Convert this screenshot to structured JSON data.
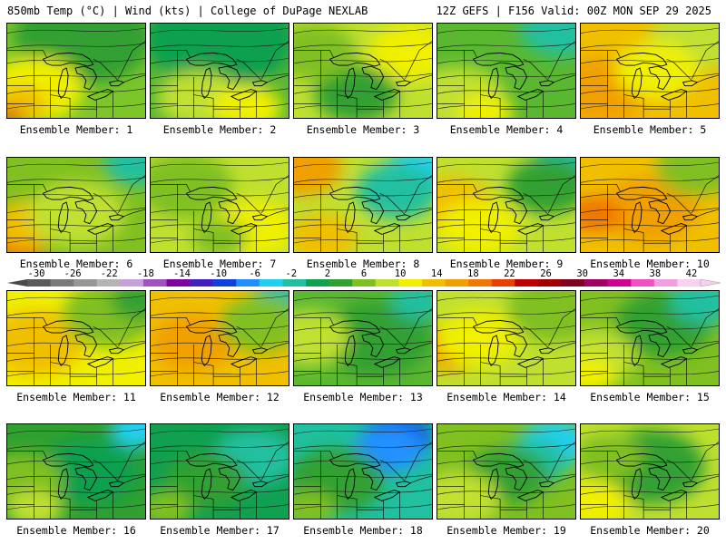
{
  "header": {
    "left": "850mb Temp (°C) | Wind (kts) | College of DuPage NEXLAB",
    "right": "12Z GEFS | F156 Valid: 00Z MON SEP 29 2025"
  },
  "colorbar": {
    "ticks": [
      "-30",
      "-26",
      "-22",
      "-18",
      "-14",
      "-10",
      "-6",
      "-2",
      "2",
      "6",
      "10",
      "14",
      "18",
      "22",
      "26",
      "30",
      "34",
      "38",
      "42"
    ],
    "colors": [
      "#5a5a5a",
      "#7a7a7a",
      "#969696",
      "#b4b4b4",
      "#c8a0d8",
      "#a050c0",
      "#8000a0",
      "#4020c0",
      "#1040e0",
      "#2090ff",
      "#20d0f0",
      "#20c0a0",
      "#10a050",
      "#30a030",
      "#80c020",
      "#c0e030",
      "#f0f000",
      "#f0c000",
      "#f0a000",
      "#f07800",
      "#e84000",
      "#c00000",
      "#a00000",
      "#800020",
      "#a00060",
      "#d00090",
      "#f050c0",
      "#f0a0e0",
      "#f8d0f0"
    ]
  },
  "panels": [
    {
      "label": "Ensemble Member: 1",
      "base": "#7cc62a",
      "blobs": [
        [
          "#30a030",
          0.55,
          0.15,
          0.5
        ],
        [
          "#f0f000",
          0.2,
          0.7,
          0.35
        ],
        [
          "#f0c000",
          0.1,
          0.85,
          0.2
        ],
        [
          "#e84000",
          0.02,
          0.97,
          0.08
        ]
      ]
    },
    {
      "label": "Ensemble Member: 2",
      "base": "#5ab830",
      "blobs": [
        [
          "#10a050",
          0.5,
          0.15,
          0.55
        ],
        [
          "#c0e030",
          0.35,
          0.8,
          0.3
        ],
        [
          "#f0f000",
          0.7,
          0.9,
          0.25
        ]
      ]
    },
    {
      "label": "Ensemble Member: 3",
      "base": "#c0e030",
      "blobs": [
        [
          "#30a030",
          0.45,
          0.75,
          0.3
        ],
        [
          "#f0f000",
          0.85,
          0.3,
          0.3
        ],
        [
          "#80c020",
          0.15,
          0.3,
          0.3
        ]
      ]
    },
    {
      "label": "Ensemble Member: 4",
      "base": "#5ab830",
      "blobs": [
        [
          "#20c0a0",
          0.9,
          0.05,
          0.3
        ],
        [
          "#c0e030",
          0.15,
          0.8,
          0.35
        ],
        [
          "#f0f000",
          0.35,
          0.95,
          0.2
        ]
      ]
    },
    {
      "label": "Ensemble Member: 5",
      "base": "#f0c000",
      "blobs": [
        [
          "#f0a000",
          0.15,
          0.7,
          0.35
        ],
        [
          "#c0e030",
          0.85,
          0.15,
          0.35
        ],
        [
          "#f0f000",
          0.55,
          0.5,
          0.3
        ]
      ]
    },
    {
      "label": "Ensemble Member: 6",
      "base": "#80c020",
      "blobs": [
        [
          "#20c0a0",
          0.95,
          0.05,
          0.25
        ],
        [
          "#f07800",
          0.05,
          0.85,
          0.25
        ],
        [
          "#f0c000",
          0.15,
          0.7,
          0.25
        ],
        [
          "#c0e030",
          0.5,
          0.6,
          0.35
        ]
      ]
    },
    {
      "label": "Ensemble Member: 7",
      "base": "#c0e030",
      "blobs": [
        [
          "#80c020",
          0.25,
          0.3,
          0.35
        ],
        [
          "#f0f000",
          0.75,
          0.75,
          0.3
        ],
        [
          "#80c020",
          0.5,
          0.85,
          0.2
        ]
      ]
    },
    {
      "label": "Ensemble Member: 8",
      "base": "#c0e030",
      "blobs": [
        [
          "#20d0f0",
          0.9,
          0.15,
          0.25
        ],
        [
          "#20c0a0",
          0.75,
          0.35,
          0.3
        ],
        [
          "#f0a000",
          0.05,
          0.1,
          0.3
        ],
        [
          "#f0c000",
          0.2,
          0.85,
          0.25
        ]
      ]
    },
    {
      "label": "Ensemble Member: 9",
      "base": "#c0e030",
      "blobs": [
        [
          "#20c0a0",
          0.95,
          0.05,
          0.25
        ],
        [
          "#30a030",
          0.8,
          0.3,
          0.3
        ],
        [
          "#f0c000",
          0.1,
          0.5,
          0.3
        ],
        [
          "#f0f000",
          0.3,
          0.75,
          0.3
        ]
      ]
    },
    {
      "label": "Ensemble Member: 10",
      "base": "#f0c000",
      "blobs": [
        [
          "#f0a000",
          0.5,
          0.55,
          0.35
        ],
        [
          "#f07800",
          0.1,
          0.6,
          0.2
        ],
        [
          "#80c020",
          0.85,
          0.1,
          0.3
        ]
      ]
    },
    {
      "label": "Ensemble Member: 11",
      "base": "#f0f000",
      "blobs": [
        [
          "#f0c000",
          0.2,
          0.55,
          0.35
        ],
        [
          "#80c020",
          0.75,
          0.25,
          0.35
        ],
        [
          "#30a030",
          0.95,
          0.1,
          0.2
        ]
      ]
    },
    {
      "label": "Ensemble Member: 12",
      "base": "#f0c000",
      "blobs": [
        [
          "#f0a000",
          0.3,
          0.55,
          0.3
        ],
        [
          "#20c0a0",
          0.95,
          0.05,
          0.2
        ],
        [
          "#80c020",
          0.8,
          0.35,
          0.3
        ]
      ]
    },
    {
      "label": "Ensemble Member: 13",
      "base": "#5ab830",
      "blobs": [
        [
          "#30a030",
          0.6,
          0.5,
          0.4
        ],
        [
          "#c0e030",
          0.1,
          0.5,
          0.3
        ],
        [
          "#20c0a0",
          0.9,
          0.1,
          0.2
        ]
      ]
    },
    {
      "label": "Ensemble Member: 14",
      "base": "#c0e030",
      "blobs": [
        [
          "#f0a000",
          0.1,
          0.6,
          0.25
        ],
        [
          "#f0f000",
          0.3,
          0.5,
          0.3
        ],
        [
          "#80c020",
          0.85,
          0.2,
          0.35
        ]
      ]
    },
    {
      "label": "Ensemble Member: 15",
      "base": "#80c020",
      "blobs": [
        [
          "#30a030",
          0.6,
          0.35,
          0.35
        ],
        [
          "#20c0a0",
          0.9,
          0.1,
          0.25
        ],
        [
          "#c0e030",
          0.1,
          0.7,
          0.3
        ],
        [
          "#f0f000",
          0.05,
          0.9,
          0.2
        ]
      ]
    },
    {
      "label": "Ensemble Member: 16",
      "base": "#30a030",
      "blobs": [
        [
          "#10a050",
          0.6,
          0.5,
          0.35
        ],
        [
          "#20d0f0",
          0.95,
          0.05,
          0.2
        ],
        [
          "#80c020",
          0.1,
          0.6,
          0.3
        ],
        [
          "#c0e030",
          0.2,
          0.9,
          0.2
        ]
      ]
    },
    {
      "label": "Ensemble Member: 17",
      "base": "#10a050",
      "blobs": [
        [
          "#20c0a0",
          0.75,
          0.35,
          0.3
        ],
        [
          "#30a030",
          0.4,
          0.6,
          0.3
        ],
        [
          "#80c020",
          0.1,
          0.9,
          0.2
        ]
      ]
    },
    {
      "label": "Ensemble Member: 18",
      "base": "#20c0a0",
      "blobs": [
        [
          "#1040e0",
          0.75,
          0.15,
          0.25
        ],
        [
          "#2090ff",
          0.7,
          0.25,
          0.25
        ],
        [
          "#30a030",
          0.3,
          0.6,
          0.35
        ],
        [
          "#80c020",
          0.1,
          0.9,
          0.2
        ]
      ]
    },
    {
      "label": "Ensemble Member: 19",
      "base": "#80c020",
      "blobs": [
        [
          "#20d0f0",
          0.85,
          0.2,
          0.25
        ],
        [
          "#20c0a0",
          0.7,
          0.4,
          0.25
        ],
        [
          "#30a030",
          0.5,
          0.55,
          0.3
        ],
        [
          "#c0e030",
          0.15,
          0.8,
          0.3
        ]
      ]
    },
    {
      "label": "Ensemble Member: 20",
      "base": "#c0e030",
      "blobs": [
        [
          "#30a030",
          0.5,
          0.45,
          0.4
        ],
        [
          "#f0f000",
          0.1,
          0.85,
          0.25
        ],
        [
          "#80c020",
          0.2,
          0.35,
          0.25
        ]
      ]
    }
  ]
}
